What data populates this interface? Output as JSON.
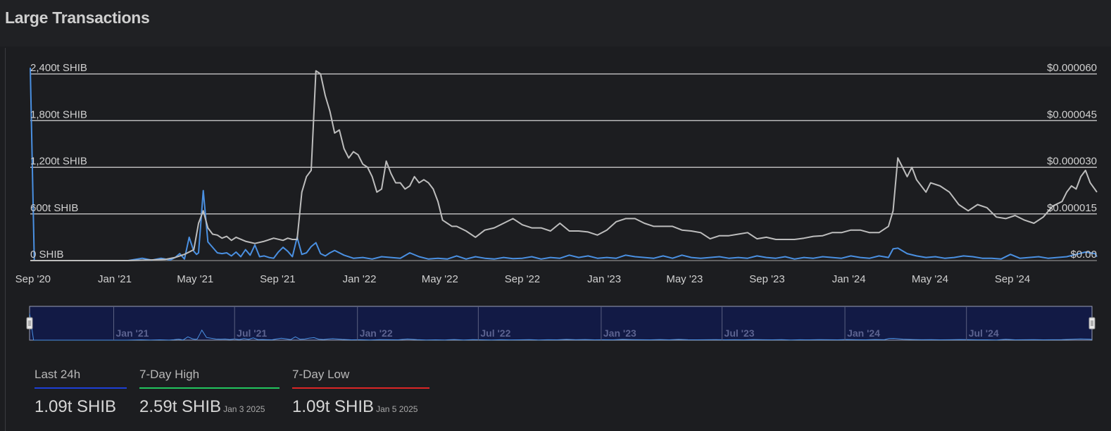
{
  "title": "Large Transactions",
  "chart_data": {
    "type": "line",
    "title": "Large Transactions",
    "x_ticks": [
      "Sep '20",
      "Jan '21",
      "May '21",
      "Sep '21",
      "Jan '22",
      "May '22",
      "Sep '22",
      "Jan '23",
      "May '23",
      "Sep '23",
      "Jan '24",
      "May '24",
      "Sep '24"
    ],
    "y_left_ticks": [
      "0 SHIB",
      "600t SHIB",
      "1,200t SHIB",
      "1,800t SHIB",
      "2,400t SHIB"
    ],
    "y_right_ticks": [
      "$0.00",
      "$0.000015",
      "$0.000030",
      "$0.000045",
      "$0.000060"
    ],
    "y_left_range": [
      0,
      2400
    ],
    "y_right_range": [
      0,
      6e-05
    ],
    "grid": true,
    "series": [
      {
        "color": "#4a90e2",
        "axis": "left",
        "x": [
          "2020-08-28",
          "2020-09-03",
          "2020-09-17",
          "2020-10-08",
          "2020-11-05",
          "2020-12-03",
          "2020-12-31",
          "2021-01-21",
          "2021-02-11",
          "2021-02-25",
          "2021-03-11",
          "2021-03-25",
          "2021-04-01",
          "2021-04-08",
          "2021-04-15",
          "2021-04-22",
          "2021-04-29",
          "2021-05-03",
          "2021-05-06",
          "2021-05-10",
          "2021-05-13",
          "2021-05-20",
          "2021-06-03",
          "2021-06-10",
          "2021-06-17",
          "2021-06-24",
          "2021-07-01",
          "2021-07-08",
          "2021-07-15",
          "2021-07-22",
          "2021-07-29",
          "2021-08-05",
          "2021-08-12",
          "2021-08-19",
          "2021-08-26",
          "2021-09-02",
          "2021-09-09",
          "2021-09-16",
          "2021-09-23",
          "2021-09-30",
          "2021-10-07",
          "2021-10-14",
          "2021-10-21",
          "2021-10-28",
          "2021-11-04",
          "2021-11-11",
          "2021-11-18",
          "2021-11-25",
          "2021-12-09",
          "2021-12-23",
          "2022-01-06",
          "2022-01-20",
          "2022-02-03",
          "2022-02-17",
          "2022-03-03",
          "2022-03-17",
          "2022-03-31",
          "2022-04-14",
          "2022-04-28",
          "2022-05-12",
          "2022-05-26",
          "2022-06-09",
          "2022-06-23",
          "2022-07-07",
          "2022-07-21",
          "2022-08-04",
          "2022-08-18",
          "2022-09-01",
          "2022-09-15",
          "2022-09-29",
          "2022-10-13",
          "2022-10-27",
          "2022-11-10",
          "2022-11-24",
          "2022-12-08",
          "2022-12-22",
          "2023-01-05",
          "2023-01-19",
          "2023-02-02",
          "2023-02-16",
          "2023-03-02",
          "2023-03-16",
          "2023-03-30",
          "2023-04-13",
          "2023-04-27",
          "2023-05-11",
          "2023-05-25",
          "2023-06-08",
          "2023-06-22",
          "2023-07-06",
          "2023-07-20",
          "2023-08-03",
          "2023-08-17",
          "2023-08-31",
          "2023-09-14",
          "2023-09-28",
          "2023-10-12",
          "2023-10-26",
          "2023-11-09",
          "2023-11-23",
          "2023-12-07",
          "2023-12-21",
          "2024-01-04",
          "2024-01-18",
          "2024-02-01",
          "2024-02-15",
          "2024-02-29",
          "2024-03-07",
          "2024-03-14",
          "2024-03-28",
          "2024-04-11",
          "2024-04-25",
          "2024-05-09",
          "2024-05-23",
          "2024-06-06",
          "2024-06-20",
          "2024-07-04",
          "2024-07-18",
          "2024-08-01",
          "2024-08-15",
          "2024-08-29",
          "2024-09-12",
          "2024-09-26",
          "2024-10-10",
          "2024-10-24",
          "2024-11-07",
          "2024-11-21",
          "2024-12-05",
          "2024-12-19",
          "2025-01-02",
          "2025-01-05"
        ],
        "values": [
          2480,
          0,
          0,
          0,
          0,
          0,
          0,
          0,
          30,
          5,
          30,
          8,
          40,
          90,
          20,
          300,
          120,
          80,
          100,
          550,
          900,
          240,
          100,
          90,
          100,
          60,
          110,
          50,
          140,
          70,
          200,
          50,
          60,
          40,
          30,
          110,
          170,
          120,
          50,
          300,
          80,
          100,
          180,
          230,
          90,
          60,
          100,
          130,
          70,
          30,
          40,
          20,
          50,
          40,
          30,
          100,
          50,
          20,
          30,
          20,
          60,
          20,
          50,
          30,
          20,
          40,
          25,
          30,
          50,
          20,
          40,
          30,
          70,
          40,
          60,
          30,
          40,
          30,
          70,
          50,
          40,
          30,
          60,
          30,
          70,
          40,
          30,
          40,
          50,
          30,
          40,
          30,
          60,
          40,
          30,
          50,
          20,
          40,
          30,
          50,
          40,
          30,
          60,
          40,
          30,
          60,
          40,
          150,
          160,
          90,
          60,
          40,
          50,
          30,
          40,
          60,
          50,
          30,
          30,
          20,
          80,
          30,
          40,
          50,
          30,
          40,
          50,
          80,
          110,
          90,
          50
        ]
      },
      {
        "color": "#bdbdbd",
        "axis": "right",
        "x": [
          "2020-08-28",
          "2021-01-21",
          "2021-02-25",
          "2021-03-18",
          "2021-04-01",
          "2021-04-15",
          "2021-04-29",
          "2021-05-06",
          "2021-05-13",
          "2021-05-20",
          "2021-05-27",
          "2021-06-03",
          "2021-06-10",
          "2021-06-17",
          "2021-06-24",
          "2021-07-01",
          "2021-07-15",
          "2021-07-29",
          "2021-08-12",
          "2021-08-26",
          "2021-09-09",
          "2021-09-16",
          "2021-09-23",
          "2021-09-30",
          "2021-10-07",
          "2021-10-14",
          "2021-10-21",
          "2021-10-28",
          "2021-11-04",
          "2021-11-11",
          "2021-11-18",
          "2021-11-25",
          "2021-12-02",
          "2021-12-09",
          "2021-12-16",
          "2021-12-23",
          "2021-12-30",
          "2022-01-06",
          "2022-01-13",
          "2022-01-20",
          "2022-01-27",
          "2022-02-03",
          "2022-02-10",
          "2022-02-17",
          "2022-02-24",
          "2022-03-03",
          "2022-03-10",
          "2022-03-17",
          "2022-03-24",
          "2022-03-31",
          "2022-04-07",
          "2022-04-14",
          "2022-04-21",
          "2022-04-28",
          "2022-05-05",
          "2022-05-12",
          "2022-05-19",
          "2022-05-26",
          "2022-06-09",
          "2022-06-23",
          "2022-07-07",
          "2022-07-21",
          "2022-08-04",
          "2022-08-18",
          "2022-09-01",
          "2022-09-15",
          "2022-09-29",
          "2022-10-13",
          "2022-10-27",
          "2022-11-10",
          "2022-11-24",
          "2022-12-08",
          "2022-12-22",
          "2023-01-05",
          "2023-01-19",
          "2023-02-02",
          "2023-02-16",
          "2023-03-02",
          "2023-03-16",
          "2023-03-30",
          "2023-04-13",
          "2023-04-27",
          "2023-05-11",
          "2023-05-25",
          "2023-06-08",
          "2023-06-22",
          "2023-07-06",
          "2023-07-20",
          "2023-08-03",
          "2023-08-17",
          "2023-08-31",
          "2023-09-14",
          "2023-09-28",
          "2023-10-12",
          "2023-10-26",
          "2023-11-09",
          "2023-11-23",
          "2023-12-07",
          "2023-12-21",
          "2024-01-04",
          "2024-01-18",
          "2024-02-01",
          "2024-02-15",
          "2024-02-29",
          "2024-03-07",
          "2024-03-14",
          "2024-03-21",
          "2024-03-28",
          "2024-04-04",
          "2024-04-11",
          "2024-04-18",
          "2024-04-25",
          "2024-05-02",
          "2024-05-16",
          "2024-05-30",
          "2024-06-13",
          "2024-06-27",
          "2024-07-11",
          "2024-07-25",
          "2024-08-08",
          "2024-08-22",
          "2024-09-05",
          "2024-09-19",
          "2024-10-03",
          "2024-10-17",
          "2024-10-31",
          "2024-11-14",
          "2024-11-21",
          "2024-11-28",
          "2024-12-05",
          "2024-12-12",
          "2024-12-19",
          "2024-12-26",
          "2025-01-05"
        ],
        "values": [
          0,
          0,
          2e-07,
          4e-07,
          1e-06,
          2e-06,
          3.5e-06,
          1.2e-05,
          1.6e-05,
          1.05e-05,
          8.5e-06,
          8.2e-06,
          7.2e-06,
          7.8e-06,
          6.5e-06,
          7.5e-06,
          6.2e-06,
          5.5e-06,
          6.2e-06,
          7.2e-06,
          6.5e-06,
          7.2e-06,
          6.8e-06,
          6.8e-06,
          2.2e-05,
          2.7e-05,
          2.9e-05,
          6.1e-05,
          6e-05,
          5.3e-05,
          4.8e-05,
          4.1e-05,
          4.2e-05,
          3.6e-05,
          3.3e-05,
          3.5e-05,
          3.4e-05,
          3.1e-05,
          3e-05,
          2.7e-05,
          2.2e-05,
          2.3e-05,
          3.2e-05,
          2.8e-05,
          2.5e-05,
          2.5e-05,
          2.3e-05,
          2.4e-05,
          2.7e-05,
          2.5e-05,
          2.6e-05,
          2.5e-05,
          2.3e-05,
          1.9e-05,
          1.3e-05,
          1.2e-05,
          1.1e-05,
          1.1e-05,
          9.5e-06,
          7.5e-06,
          9.8e-06,
          1.05e-05,
          1.2e-05,
          1.35e-05,
          1.15e-05,
          1.05e-05,
          1.05e-05,
          9.5e-06,
          1.2e-05,
          9.5e-06,
          9.5e-06,
          9.2e-06,
          8.2e-06,
          9.8e-06,
          1.25e-05,
          1.35e-05,
          1.35e-05,
          1.2e-05,
          1.1e-05,
          1.1e-05,
          1.1e-05,
          9.8e-06,
          9.5e-06,
          9e-06,
          7e-06,
          8e-06,
          8e-06,
          8.5e-06,
          9e-06,
          7e-06,
          7.5e-06,
          6.8e-06,
          6.8e-06,
          6.8e-06,
          7.2e-06,
          7.8e-06,
          8e-06,
          9e-06,
          9e-06,
          9.8e-06,
          9.8e-06,
          9e-06,
          9e-06,
          1.1e-05,
          1.6e-05,
          3.3e-05,
          3e-05,
          2.7e-05,
          3e-05,
          2.6e-05,
          2.4e-05,
          2.2e-05,
          2.5e-05,
          2.4e-05,
          2.2e-05,
          1.8e-05,
          1.6e-05,
          1.8e-05,
          1.7e-05,
          1.4e-05,
          1.35e-05,
          1.45e-05,
          1.3e-05,
          1.2e-05,
          1.4e-05,
          1.75e-05,
          1.9e-05,
          2.2e-05,
          2.4e-05,
          2.3e-05,
          2.7e-05,
          2.9e-05,
          2.5e-05,
          2.2e-05
        ]
      }
    ]
  },
  "navigator": {
    "labels": [
      "Jan '21",
      "Jul '21",
      "Jan '22",
      "Jul '22",
      "Jan '23",
      "Jul '23",
      "Jan '24",
      "Jul '24"
    ],
    "left_handle_icon": "handle-grip-icon",
    "right_handle_icon": "handle-grip-icon"
  },
  "stats": [
    {
      "label": "Last 24h",
      "value": "1.09t SHIB",
      "date": "",
      "color": "#1d3fd6"
    },
    {
      "label": "7-Day High",
      "value": "2.59t SHIB",
      "date": "Jan 3 2025",
      "color": "#22c55e"
    },
    {
      "label": "7-Day Low",
      "value": "1.09t SHIB",
      "date": "Jan 5 2025",
      "color": "#dc2626"
    }
  ]
}
